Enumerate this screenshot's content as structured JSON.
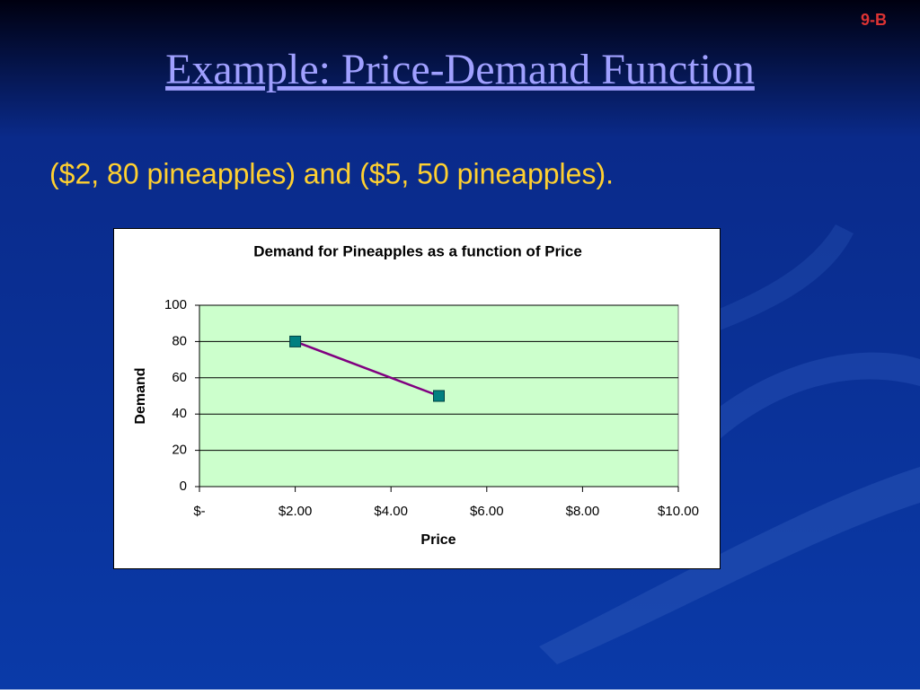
{
  "slide_number": "9-B",
  "title": "Example: Price-Demand Function",
  "text": "($2, 80 pineapples) and ($5, 50 pineapples).",
  "chart_data": {
    "type": "line",
    "title": "Demand for Pineapples as a function of Price",
    "x_label": "Price",
    "y_label": "Demand",
    "x": [
      2,
      5
    ],
    "values": [
      80,
      50
    ],
    "color": "#800080",
    "marker_color": "#008080",
    "xlim": [
      0,
      10
    ],
    "xticks": [
      {
        "value": 0,
        "label": "$-"
      },
      {
        "value": 2,
        "label": "$2.00"
      },
      {
        "value": 4,
        "label": "$4.00"
      },
      {
        "value": 6,
        "label": "$6.00"
      },
      {
        "value": 8,
        "label": "$8.00"
      },
      {
        "value": 10,
        "label": "$10.00"
      }
    ],
    "ylim": [
      0,
      100
    ],
    "yticks": [
      0,
      20,
      40,
      60,
      80,
      100
    ],
    "grid": true,
    "plot_background": "#ccffcc"
  }
}
